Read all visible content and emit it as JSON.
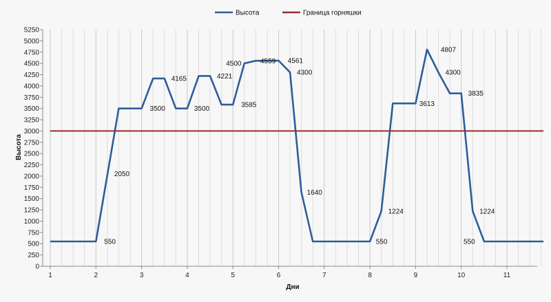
{
  "chart_data": {
    "type": "line",
    "title": "",
    "xlabel": "Дни",
    "ylabel": "Высота",
    "ylim": [
      0,
      5250
    ],
    "ystep": 250,
    "xlim": [
      1,
      11.8
    ],
    "xticks": [
      1,
      2,
      3,
      4,
      5,
      6,
      7,
      8,
      9,
      10,
      11
    ],
    "grid": "vertical",
    "legend_position": "top",
    "series": [
      {
        "name": "Высота",
        "color": "#2e5d9a",
        "x": [
          1,
          2,
          2.5,
          3,
          3.25,
          3.5,
          3.75,
          4,
          4.25,
          4.5,
          4.75,
          5,
          5.25,
          5.5,
          5.75,
          6,
          6.25,
          6.5,
          6.75,
          7,
          7.5,
          8,
          8.25,
          8.5,
          8.75,
          9,
          9.25,
          9.5,
          9.75,
          10,
          10.25,
          10.5,
          10.75,
          11,
          11.8
        ],
        "y": [
          550,
          550,
          3500,
          3500,
          4165,
          4165,
          3500,
          3500,
          4221,
          4221,
          3585,
          3585,
          4500,
          4559,
          4559,
          4561,
          4300,
          1640,
          550,
          550,
          550,
          550,
          1224,
          3613,
          3613,
          3613,
          4807,
          4300,
          3835,
          3835,
          1224,
          550,
          550,
          550,
          550
        ]
      },
      {
        "name": "Граница горняшки",
        "color": "#9b2c2c",
        "x": [
          1,
          11.8
        ],
        "y": [
          3000,
          3000
        ]
      }
    ],
    "data_labels": [
      {
        "x": 2.18,
        "y": 550,
        "text": "550"
      },
      {
        "x": 2.4,
        "y": 2050,
        "text": "2050"
      },
      {
        "x": 3.18,
        "y": 3500,
        "text": "3500"
      },
      {
        "x": 3.65,
        "y": 4165,
        "text": "4165"
      },
      {
        "x": 4.15,
        "y": 3500,
        "text": "3500"
      },
      {
        "x": 4.65,
        "y": 4221,
        "text": "4221"
      },
      {
        "x": 5.18,
        "y": 3585,
        "text": "3585"
      },
      {
        "x": 4.85,
        "y": 4500,
        "text": "4500"
      },
      {
        "x": 5.6,
        "y": 4559,
        "text": "4559"
      },
      {
        "x": 6.2,
        "y": 4561,
        "text": "4561"
      },
      {
        "x": 6.4,
        "y": 4300,
        "text": "4300"
      },
      {
        "x": 6.62,
        "y": 1640,
        "text": "1640"
      },
      {
        "x": 8.13,
        "y": 550,
        "text": "550"
      },
      {
        "x": 8.4,
        "y": 1224,
        "text": "1224"
      },
      {
        "x": 9.08,
        "y": 3613,
        "text": "3613"
      },
      {
        "x": 9.55,
        "y": 4807,
        "text": "4807"
      },
      {
        "x": 9.65,
        "y": 4300,
        "text": "4300"
      },
      {
        "x": 10.15,
        "y": 3835,
        "text": "3835"
      },
      {
        "x": 10.4,
        "y": 1224,
        "text": "1224"
      },
      {
        "x": 10.05,
        "y": 550,
        "text": "550"
      }
    ]
  }
}
